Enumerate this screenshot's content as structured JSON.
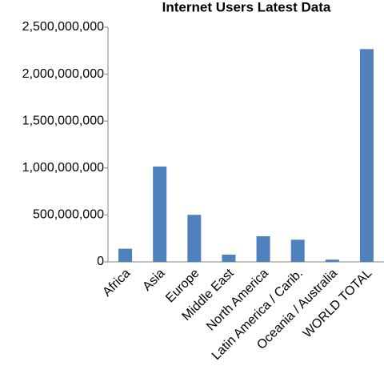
{
  "chart_data": {
    "type": "bar",
    "title": "Internet Users Latest Data",
    "categories": [
      "Africa",
      "Asia",
      "Europe",
      "Middle East",
      "North America",
      "Latin America / Carib.",
      "Oceania / Australia",
      "WORLD TOTAL"
    ],
    "values": [
      140000000,
      1016000000,
      501000000,
      77000000,
      273000000,
      236000000,
      24000000,
      2267000000
    ],
    "color": "#4f81bd",
    "ylim": [
      0,
      2500000000
    ],
    "yticks": [
      0,
      {
        "value": 500000000,
        "label": "500,000,000"
      },
      {
        "value": 1000000000,
        "label": "1,000,000,000"
      },
      {
        "value": 1500000000,
        "label": "1,500,000,000"
      },
      {
        "value": 2000000000,
        "label": "2,000,000,000"
      },
      {
        "value": 2500000000,
        "label": "2,500,000,000"
      }
    ],
    "grid": false
  }
}
